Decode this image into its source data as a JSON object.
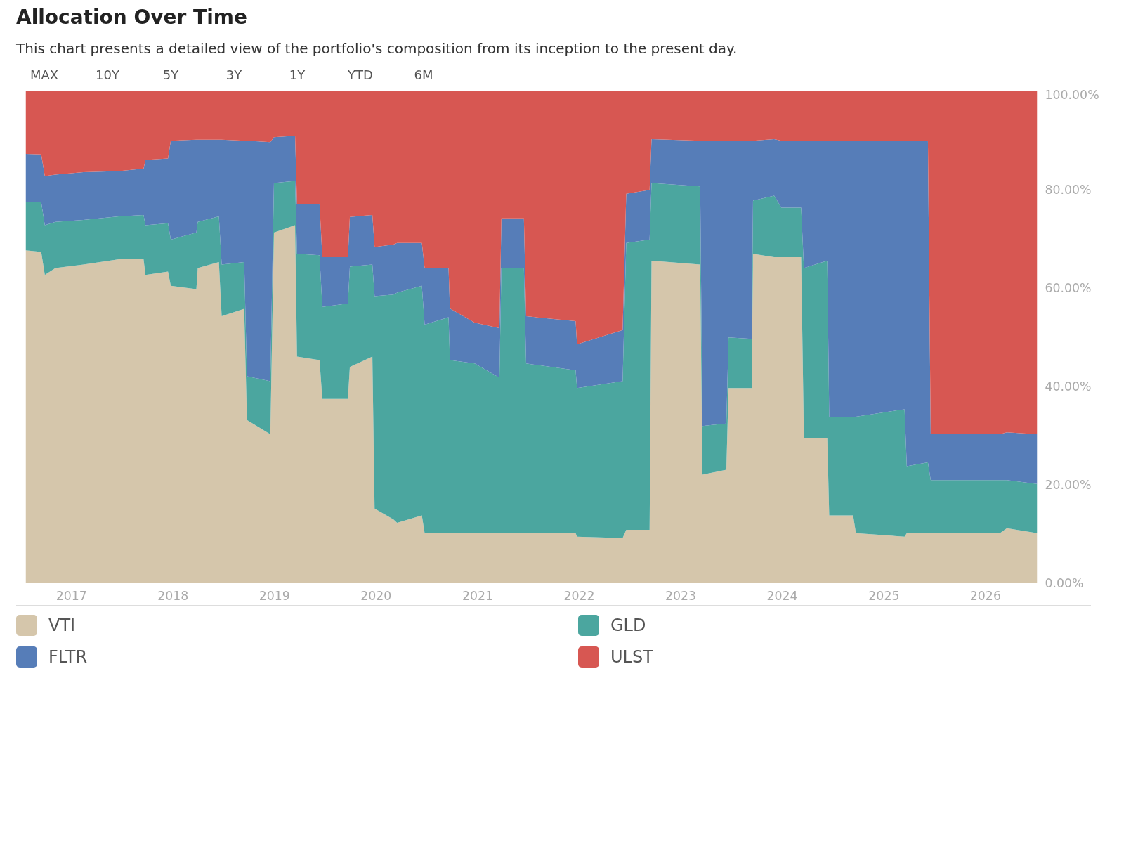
{
  "chart_data": {
    "type": "area",
    "stacked": true,
    "title": "Allocation Over Time",
    "subtitle": "This chart presents a detailed view of the portfolio's composition from its inception to the present day.",
    "annotations": [
      "MAX",
      "10Y",
      "5Y",
      "3Y",
      "1Y",
      "YTD",
      "6M"
    ],
    "x": [
      "2016-07-20",
      "2016-09-14",
      "2016-09-27",
      "2016-11-04",
      "2017-02-13",
      "2017-06-20",
      "2017-09-17",
      "2017-09-24",
      "2017-12-14",
      "2017-12-24",
      "2018-03-26",
      "2018-03-31",
      "2018-06-15",
      "2018-06-25",
      "2018-09-14",
      "2018-09-24",
      "2018-12-17",
      "2018-12-30",
      "2019-03-16",
      "2019-03-23",
      "2019-06-12",
      "2019-06-22",
      "2019-09-22",
      "2019-09-29",
      "2019-12-19",
      "2019-12-27",
      "2020-03-04",
      "2020-03-17",
      "2020-06-14",
      "2020-06-24",
      "2020-09-18",
      "2020-09-23",
      "2020-12-21",
      "2021-03-20",
      "2021-03-27",
      "2021-06-16",
      "2021-06-24",
      "2021-12-19",
      "2021-12-24",
      "2022-06-06",
      "2022-06-19",
      "2022-09-11",
      "2022-09-18",
      "2023-03-12",
      "2023-03-20",
      "2023-06-14",
      "2023-06-22",
      "2023-09-13",
      "2023-09-18",
      "2023-12-03",
      "2023-12-29",
      "2024-03-09",
      "2024-03-19",
      "2024-06-11",
      "2024-06-18",
      "2024-09-12",
      "2024-09-22",
      "2025-03-16",
      "2025-03-24",
      "2025-06-08",
      "2025-06-18",
      "2026-02-22",
      "2026-03-19",
      "2026-07-06"
    ],
    "series": [
      {
        "name": "VTI",
        "color": "#d5c6ab",
        "values": [
          67.6,
          67.3,
          62.6,
          64.0,
          64.7,
          65.8,
          65.8,
          62.6,
          63.3,
          60.4,
          59.7,
          64.0,
          65.2,
          54.2,
          55.7,
          33.1,
          30.2,
          71.2,
          72.7,
          46.0,
          45.3,
          37.4,
          37.4,
          43.9,
          46.0,
          15.1,
          12.9,
          12.2,
          13.7,
          10.1,
          10.1,
          10.1,
          10.1,
          10.1,
          10.1,
          10.1,
          10.1,
          10.1,
          9.4,
          9.1,
          10.8,
          10.8,
          65.5,
          64.7,
          22.0,
          23.0,
          39.6,
          39.6,
          66.9,
          66.2,
          66.2,
          66.2,
          29.5,
          29.5,
          13.7,
          13.7,
          10.1,
          9.4,
          10.1,
          10.1,
          10.1,
          10.1,
          11.1,
          10.1
        ]
      },
      {
        "name": "GLD",
        "color": "#4ba69f",
        "values": [
          9.8,
          10.1,
          10.1,
          9.4,
          9.1,
          8.7,
          9.0,
          10.1,
          9.8,
          9.4,
          11.5,
          9.4,
          9.3,
          10.5,
          9.5,
          8.9,
          10.8,
          10.1,
          9.0,
          20.9,
          21.3,
          18.7,
          19.4,
          20.4,
          18.7,
          43.2,
          45.7,
          46.8,
          46.7,
          42.4,
          43.9,
          35.2,
          34.5,
          31.6,
          53.9,
          53.9,
          34.5,
          33.1,
          30.2,
          31.9,
          58.3,
          59.0,
          15.8,
          15.9,
          9.9,
          9.4,
          10.3,
          10.0,
          10.8,
          12.5,
          10.1,
          10.1,
          34.5,
          36.0,
          20.1,
          20.1,
          23.7,
          25.9,
          13.6,
          14.4,
          10.8,
          10.8,
          9.8,
          10.0
        ]
      },
      {
        "name": "FLTR",
        "color": "#567db8",
        "values": [
          9.8,
          9.7,
          10.0,
          9.6,
          9.7,
          9.2,
          9.4,
          13.3,
          13.2,
          20.1,
          18.9,
          16.7,
          15.6,
          25.4,
          24.7,
          47.9,
          48.6,
          9.3,
          9.2,
          10.1,
          10.4,
          10.1,
          9.4,
          10.1,
          10.1,
          10.0,
          10.2,
          10.1,
          8.7,
          11.5,
          10.0,
          10.5,
          8.3,
          10.1,
          10.1,
          10.1,
          9.6,
          10.0,
          8.9,
          10.4,
          10.0,
          10.1,
          8.9,
          9.3,
          58.0,
          57.5,
          40.0,
          40.3,
          12.2,
          11.5,
          13.6,
          13.6,
          25.9,
          24.4,
          56.1,
          56.1,
          56.1,
          54.6,
          66.2,
          65.4,
          9.3,
          9.3,
          9.7,
          10.1
        ]
      },
      {
        "name": "ULST",
        "color": "#d75752",
        "values": [
          12.8,
          12.9,
          17.3,
          17.0,
          16.5,
          16.3,
          15.8,
          14.0,
          13.7,
          10.1,
          9.9,
          9.9,
          9.9,
          9.9,
          10.1,
          10.1,
          10.4,
          9.4,
          9.1,
          23.0,
          23.0,
          33.8,
          33.8,
          25.6,
          25.2,
          31.7,
          31.2,
          30.9,
          30.9,
          36.0,
          36.0,
          44.2,
          47.1,
          48.2,
          25.9,
          25.9,
          45.8,
          46.8,
          51.5,
          48.6,
          20.9,
          20.1,
          9.8,
          10.1,
          10.1,
          10.1,
          10.1,
          10.1,
          10.1,
          9.8,
          10.1,
          10.1,
          10.1,
          10.1,
          10.1,
          10.1,
          10.1,
          10.1,
          10.1,
          10.1,
          69.8,
          69.8,
          69.4,
          69.8
        ]
      }
    ],
    "xlim": [
      "2016-07-20",
      "2026-07-06"
    ],
    "xticks": [
      {
        "value": "2017",
        "label": "2017"
      },
      {
        "value": "2018",
        "label": "2018"
      },
      {
        "value": "2019",
        "label": "2019"
      },
      {
        "value": "2020",
        "label": "2020"
      },
      {
        "value": "2021",
        "label": "2021"
      },
      {
        "value": "2022",
        "label": "2022"
      },
      {
        "value": "2023",
        "label": "2023"
      },
      {
        "value": "2024",
        "label": "2024"
      },
      {
        "value": "2025",
        "label": "2025"
      },
      {
        "value": "2026",
        "label": "2026"
      }
    ],
    "ylim": [
      0,
      100
    ],
    "yticks": [
      {
        "value": 0,
        "label": "0.00%"
      },
      {
        "value": 20,
        "label": "20.00%"
      },
      {
        "value": 40,
        "label": "40.00%"
      },
      {
        "value": 60,
        "label": "60.00%"
      },
      {
        "value": 80,
        "label": "80.00%"
      },
      {
        "value": 100,
        "label": "100.00%"
      }
    ],
    "grid": false,
    "legend": "bottom"
  }
}
